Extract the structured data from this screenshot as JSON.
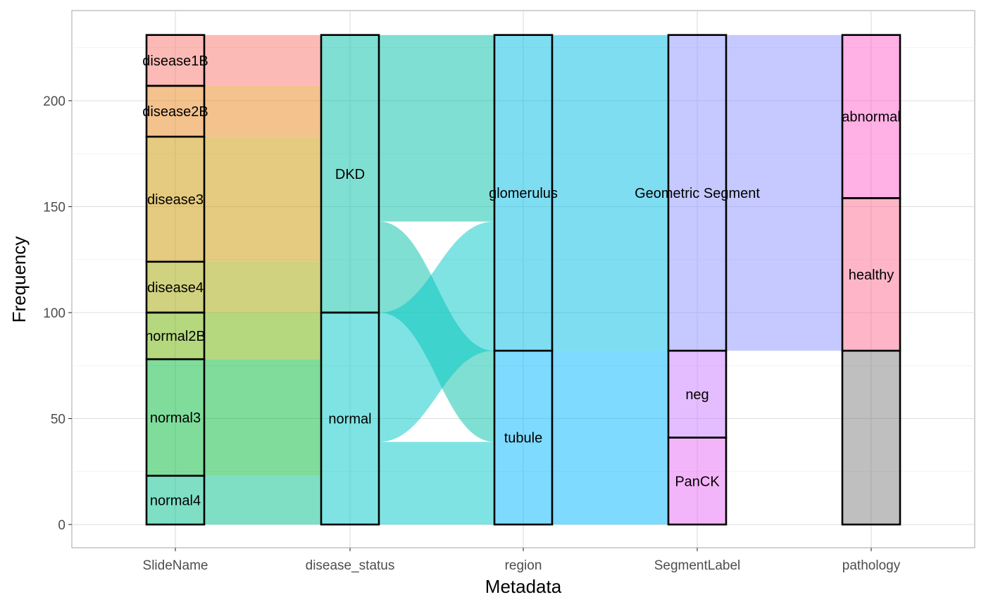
{
  "chart_data": {
    "type": "alluvial",
    "xlabel": "Metadata",
    "ylabel": "Frequency",
    "ylim": [
      0,
      233
    ],
    "yticks": [
      0,
      50,
      100,
      150,
      200
    ],
    "axes": [
      "SlideName",
      "disease_status",
      "region",
      "SegmentLabel",
      "pathology"
    ],
    "grid": true,
    "strata": [
      {
        "axis": "SlideName",
        "levels": [
          {
            "label": "disease1B",
            "value": 24,
            "color": "#F8766D"
          },
          {
            "label": "disease2B",
            "value": 24,
            "color": "#E7861B"
          },
          {
            "label": "disease3",
            "value": 59,
            "color": "#C99800"
          },
          {
            "label": "disease4",
            "value": 24,
            "color": "#A3A500"
          },
          {
            "label": "normal2B",
            "value": 22,
            "color": "#6BB100"
          },
          {
            "label": "normal3",
            "value": 55,
            "color": "#00BA38"
          },
          {
            "label": "normal4",
            "value": 23,
            "color": "#00C08B"
          }
        ]
      },
      {
        "axis": "disease_status",
        "levels": [
          {
            "label": "DKD",
            "value": 131,
            "color": "#00BFA5"
          },
          {
            "label": "normal",
            "value": 100,
            "color": "#00C8C8"
          }
        ]
      },
      {
        "axis": "region",
        "levels": [
          {
            "label": "glomerulus",
            "value": 149,
            "color": "#00BCE3"
          },
          {
            "label": "tubule",
            "value": 82,
            "color": "#00B6FF"
          }
        ]
      },
      {
        "axis": "SegmentLabel",
        "levels": [
          {
            "label": "Geometric Segment",
            "value": 149,
            "color": "#8B93FF"
          },
          {
            "label": "neg",
            "value": 41,
            "color": "#C77CFF"
          },
          {
            "label": "PanCK",
            "value": 41,
            "color": "#E76BF3"
          }
        ]
      },
      {
        "axis": "pathology",
        "levels": [
          {
            "label": "abnormal",
            "value": 77,
            "color": "#FF61CC"
          },
          {
            "label": "healthy",
            "value": 72,
            "color": "#FF6C91"
          },
          {
            "label": "",
            "value": 82,
            "color": "#7F7F7F"
          }
        ]
      }
    ],
    "flows": [
      {
        "from": "SlideName",
        "to": "disease_status",
        "links": [
          {
            "source": "disease1B",
            "target": "DKD",
            "value": 24,
            "color": "#F8766D"
          },
          {
            "source": "disease2B",
            "target": "DKD",
            "value": 24,
            "color": "#E7861B"
          },
          {
            "source": "disease3",
            "target": "DKD",
            "value": 59,
            "color": "#C99800"
          },
          {
            "source": "disease4",
            "target": "DKD",
            "value": 24,
            "color": "#A3A500"
          },
          {
            "source": "normal2B",
            "target": "normal",
            "value": 22,
            "color": "#6BB100"
          },
          {
            "source": "normal3",
            "target": "normal",
            "value": 55,
            "color": "#00BA38"
          },
          {
            "source": "normal4",
            "target": "normal",
            "value": 23,
            "color": "#00C08B"
          }
        ]
      },
      {
        "from": "disease_status",
        "to": "region",
        "links": [
          {
            "source": "DKD",
            "target": "glomerulus",
            "value": 88,
            "color": "#00BFA5"
          },
          {
            "source": "DKD",
            "target": "tubule",
            "value": 43,
            "color": "#00BFA5"
          },
          {
            "source": "normal",
            "target": "glomerulus",
            "value": 61,
            "color": "#00C8C8"
          },
          {
            "source": "normal",
            "target": "tubule",
            "value": 39,
            "color": "#00C8C8"
          }
        ]
      },
      {
        "from": "region",
        "to": "SegmentLabel",
        "links": [
          {
            "source": "glomerulus",
            "target": "Geometric Segment",
            "value": 149,
            "color": "#00BCE3"
          },
          {
            "source": "tubule",
            "target": "neg",
            "value": 41,
            "color": "#00B6FF"
          },
          {
            "source": "tubule",
            "target": "PanCK",
            "value": 41,
            "color": "#00B6FF"
          }
        ]
      },
      {
        "from": "SegmentLabel",
        "to": "pathology",
        "links": [
          {
            "source": "Geometric Segment",
            "target": "abnormal",
            "value": 77,
            "color": "#8B93FF"
          },
          {
            "source": "Geometric Segment",
            "target": "healthy",
            "value": 72,
            "color": "#8B93FF"
          }
        ]
      }
    ]
  }
}
